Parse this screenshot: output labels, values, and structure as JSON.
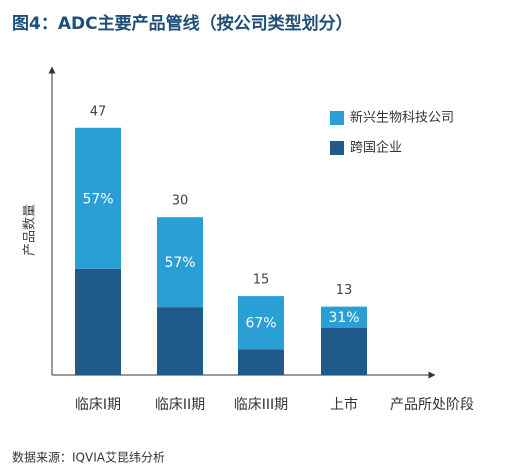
{
  "chart_data": {
    "type": "stacked_bar",
    "title": "图4：ADC主要产品管线（按公司类型划分）",
    "source": "数据来源：IQVIA艾昆纬分析",
    "y_label": "产品数量",
    "x_label": "产品所处阶段",
    "categories": [
      "临床I期",
      "临床II期",
      "临床III期",
      "上市"
    ],
    "series": [
      {
        "name": "跨国企业",
        "color": "#1f5a8a",
        "values": [
          20.2,
          12.9,
          4.9,
          9.0
        ]
      },
      {
        "name": "新兴生物科技公司",
        "color": "#2a9fd6",
        "values": [
          26.8,
          17.1,
          10.1,
          4.0
        ]
      }
    ],
    "totals": [
      47,
      30,
      15,
      13
    ],
    "emerging_share": {
      "values": [
        57,
        57,
        67,
        31
      ],
      "value_labels": [
        "57%",
        "57%",
        "67%",
        "31%"
      ]
    },
    "ylim": [
      0,
      57.6
    ],
    "legend": "upper right"
  }
}
